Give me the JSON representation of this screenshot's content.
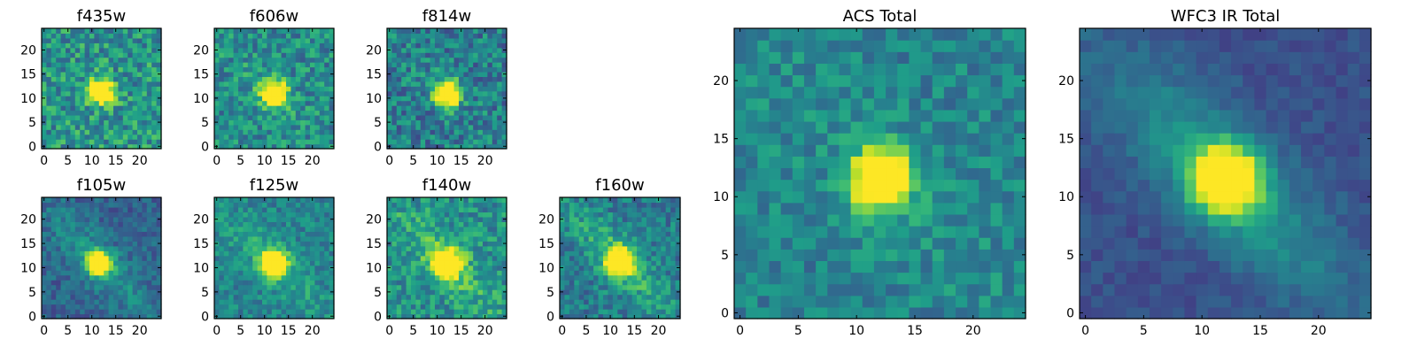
{
  "figure": {
    "colormap": [
      "#440154",
      "#482878",
      "#3e4989",
      "#31688e",
      "#26828e",
      "#1f9e89",
      "#35b779",
      "#6ece58",
      "#b5de2b",
      "#fde725"
    ],
    "tick_color": "#000000",
    "frame_color": "#000000"
  },
  "chart_data": [
    {
      "type": "heatmap",
      "title": "f435w",
      "xlim": [
        -0.5,
        24.5
      ],
      "ylim": [
        -0.5,
        24.5
      ],
      "xticks": [
        0,
        5,
        10,
        15,
        20
      ],
      "yticks": [
        0,
        5,
        10,
        15,
        20
      ],
      "grid": false,
      "legend": "none",
      "grid_size": [
        25,
        25
      ],
      "peak": [
        12,
        11.5
      ],
      "peak_spread": 1.7,
      "background": 0.52,
      "noise": 0.22,
      "diag_feature": 0.0
    },
    {
      "type": "heatmap",
      "title": "f606w",
      "xlim": [
        -0.5,
        24.5
      ],
      "ylim": [
        -0.5,
        24.5
      ],
      "xticks": [
        0,
        5,
        10,
        15,
        20
      ],
      "yticks": [
        0,
        5,
        10,
        15,
        20
      ],
      "grid": false,
      "legend": "none",
      "grid_size": [
        25,
        25
      ],
      "peak": [
        12,
        11
      ],
      "peak_spread": 1.8,
      "background": 0.48,
      "noise": 0.2,
      "diag_feature": 0.05
    },
    {
      "type": "heatmap",
      "title": "f814w",
      "xlim": [
        -0.5,
        24.5
      ],
      "ylim": [
        -0.5,
        24.5
      ],
      "xticks": [
        0,
        5,
        10,
        15,
        20
      ],
      "yticks": [
        0,
        5,
        10,
        15,
        20
      ],
      "grid": false,
      "legend": "none",
      "grid_size": [
        25,
        25
      ],
      "peak": [
        12,
        11
      ],
      "peak_spread": 1.8,
      "background": 0.42,
      "noise": 0.2,
      "diag_feature": 0.05
    },
    {
      "type": "heatmap",
      "title": "f105w",
      "xlim": [
        -0.5,
        24.5
      ],
      "ylim": [
        -0.5,
        24.5
      ],
      "xticks": [
        0,
        5,
        10,
        15,
        20
      ],
      "yticks": [
        0,
        5,
        10,
        15,
        20
      ],
      "grid": false,
      "legend": "none",
      "grid_size": [
        25,
        25
      ],
      "peak": [
        11.5,
        11
      ],
      "peak_spread": 1.6,
      "background": 0.32,
      "noise": 0.12,
      "diag_feature": 0.22
    },
    {
      "type": "heatmap",
      "title": "f125w",
      "xlim": [
        -0.5,
        24.5
      ],
      "ylim": [
        -0.5,
        24.5
      ],
      "xticks": [
        0,
        5,
        10,
        15,
        20
      ],
      "yticks": [
        0,
        5,
        10,
        15,
        20
      ],
      "grid": false,
      "legend": "none",
      "grid_size": [
        25,
        25
      ],
      "peak": [
        12,
        11
      ],
      "peak_spread": 1.8,
      "background": 0.45,
      "noise": 0.14,
      "diag_feature": 0.15
    },
    {
      "type": "heatmap",
      "title": "f140w",
      "xlim": [
        -0.5,
        24.5
      ],
      "ylim": [
        -0.5,
        24.5
      ],
      "xticks": [
        0,
        5,
        10,
        15,
        20
      ],
      "yticks": [
        0,
        5,
        10,
        15,
        20
      ],
      "grid": false,
      "legend": "none",
      "grid_size": [
        25,
        25
      ],
      "peak": [
        12,
        11
      ],
      "peak_spread": 1.9,
      "background": 0.5,
      "noise": 0.18,
      "diag_feature": 0.2
    },
    {
      "type": "heatmap",
      "title": "f160w",
      "xlim": [
        -0.5,
        24.5
      ],
      "ylim": [
        -0.5,
        24.5
      ],
      "xticks": [
        0,
        5,
        10,
        15,
        20
      ],
      "yticks": [
        0,
        5,
        10,
        15,
        20
      ],
      "grid": false,
      "legend": "none",
      "grid_size": [
        25,
        25
      ],
      "peak": [
        12,
        11.5
      ],
      "peak_spread": 1.8,
      "background": 0.42,
      "noise": 0.16,
      "diag_feature": 0.25
    },
    {
      "type": "heatmap",
      "title": "ACS Total",
      "xlim": [
        -0.5,
        24.5
      ],
      "ylim": [
        -0.5,
        24.5
      ],
      "xticks": [
        0,
        5,
        10,
        15,
        20
      ],
      "yticks": [
        0,
        5,
        10,
        15,
        20
      ],
      "grid": false,
      "legend": "none",
      "grid_size": [
        25,
        25
      ],
      "peak": [
        12,
        11.5
      ],
      "peak_spread": 1.7,
      "background": 0.45,
      "noise": 0.14,
      "diag_feature": 0.05
    },
    {
      "type": "heatmap",
      "title": "WFC3 IR Total",
      "xlim": [
        -0.5,
        24.5
      ],
      "ylim": [
        -0.5,
        24.5
      ],
      "xticks": [
        0,
        5,
        10,
        15,
        20
      ],
      "yticks": [
        0,
        5,
        10,
        15,
        20
      ],
      "grid": false,
      "legend": "none",
      "grid_size": [
        25,
        25
      ],
      "peak": [
        12,
        11.5
      ],
      "peak_spread": 1.9,
      "background": 0.25,
      "noise": 0.06,
      "diag_feature": 0.3
    }
  ]
}
